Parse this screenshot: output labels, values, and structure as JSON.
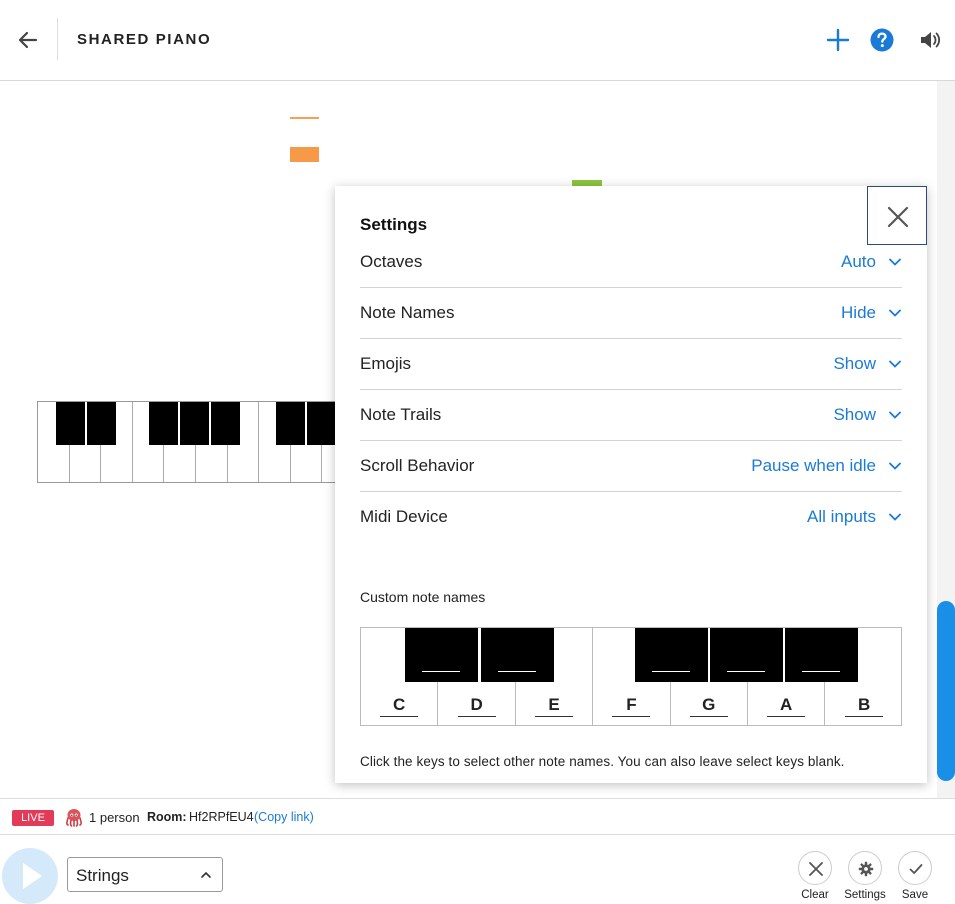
{
  "header": {
    "title": "SHARED PIANO"
  },
  "settings": {
    "title": "Settings",
    "rows": [
      {
        "label": "Octaves",
        "value": "Auto"
      },
      {
        "label": "Note Names",
        "value": "Hide"
      },
      {
        "label": "Emojis",
        "value": "Show"
      },
      {
        "label": "Note Trails",
        "value": "Show"
      },
      {
        "label": "Scroll Behavior",
        "value": "Pause when idle"
      },
      {
        "label": "Midi Device",
        "value": "All inputs"
      }
    ],
    "custom_title": "Custom note names",
    "white_keys": [
      "C",
      "D",
      "E",
      "F",
      "G",
      "A",
      "B"
    ],
    "hint": "Click the keys to select other note names. You can also leave select keys blank."
  },
  "status": {
    "live": "LIVE",
    "people": "1 person",
    "room_label": "Room:",
    "room_id": "Hf2RPfEU4",
    "copy_link": "(Copy link)"
  },
  "toolbar": {
    "instrument": "Strings",
    "clear_label": "Clear",
    "settings_label": "Settings",
    "save_label": "Save"
  },
  "colors": {
    "accent": "#1a7bd6",
    "live_badge": "#e23b5a",
    "scroll_thumb": "#1a8fe8",
    "note_orange": "#f79a48",
    "note_green": "#8cc63f"
  }
}
